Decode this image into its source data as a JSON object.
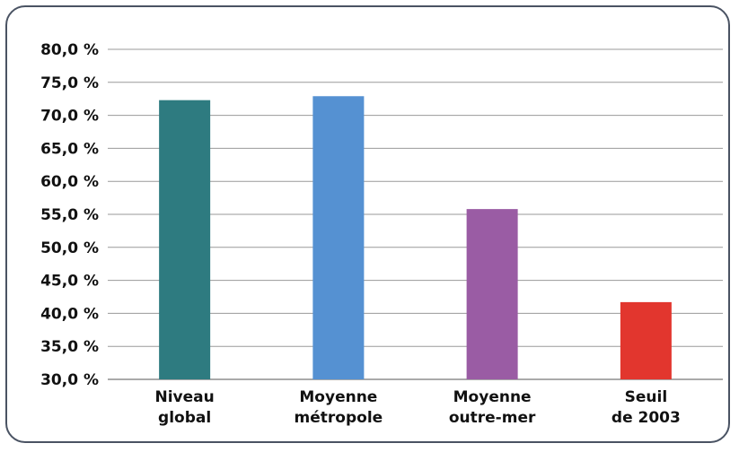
{
  "chart_data": {
    "type": "bar",
    "categories": [
      [
        "Niveau",
        "global"
      ],
      [
        "Moyenne",
        "métropole"
      ],
      [
        "Moyenne",
        "outre-mer"
      ],
      [
        "Seuil",
        "de 2003"
      ]
    ],
    "values": [
      72.3,
      72.9,
      55.8,
      41.7
    ],
    "colors": [
      "#2e7b80",
      "#5591d2",
      "#9a5ca4",
      "#e2362e"
    ],
    "ylim": [
      30,
      80
    ],
    "ytick_step": 5,
    "ytick_labels": [
      "30,0 %",
      "35,0 %",
      "40,0 %",
      "45,0 %",
      "50,0 %",
      "55,0 %",
      "60,0 %",
      "65,0 %",
      "70,0 %",
      "75,0 %",
      "80,0 %"
    ],
    "grid": true,
    "title": "",
    "xlabel": "",
    "ylabel": ""
  }
}
